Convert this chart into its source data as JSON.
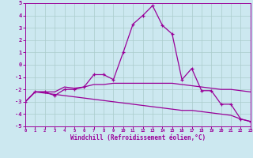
{
  "xlabel": "Windchill (Refroidissement éolien,°C)",
  "x": [
    0,
    1,
    2,
    3,
    4,
    5,
    6,
    7,
    8,
    9,
    10,
    11,
    12,
    13,
    14,
    15,
    16,
    17,
    18,
    19,
    20,
    21,
    22,
    23
  ],
  "line1": [
    -3.0,
    -2.2,
    -2.2,
    -2.5,
    -2.0,
    -2.0,
    -1.8,
    -0.8,
    -0.8,
    -1.2,
    1.0,
    3.3,
    4.0,
    4.8,
    3.2,
    2.5,
    -1.2,
    -0.3,
    -2.1,
    -2.1,
    -3.2,
    -3.2,
    -4.4,
    -4.6
  ],
  "line2": [
    -3.0,
    -2.2,
    -2.2,
    -2.2,
    -1.8,
    -1.9,
    -1.8,
    -1.6,
    -1.6,
    -1.5,
    -1.5,
    -1.5,
    -1.5,
    -1.5,
    -1.5,
    -1.5,
    -1.6,
    -1.7,
    -1.8,
    -1.9,
    -2.0,
    -2.0,
    -2.1,
    -2.2
  ],
  "line3": [
    -3.0,
    -2.2,
    -2.3,
    -2.4,
    -2.5,
    -2.6,
    -2.7,
    -2.8,
    -2.9,
    -3.0,
    -3.1,
    -3.2,
    -3.3,
    -3.4,
    -3.5,
    -3.6,
    -3.7,
    -3.7,
    -3.8,
    -3.9,
    -4.0,
    -4.1,
    -4.4,
    -4.6
  ],
  "color": "#990099",
  "bg_color": "#cce8f0",
  "grid_color": "#aacccc",
  "ylim": [
    -5,
    5
  ],
  "xlim": [
    0,
    23
  ],
  "yticks": [
    -5,
    -4,
    -3,
    -2,
    -1,
    0,
    1,
    2,
    3,
    4,
    5
  ]
}
